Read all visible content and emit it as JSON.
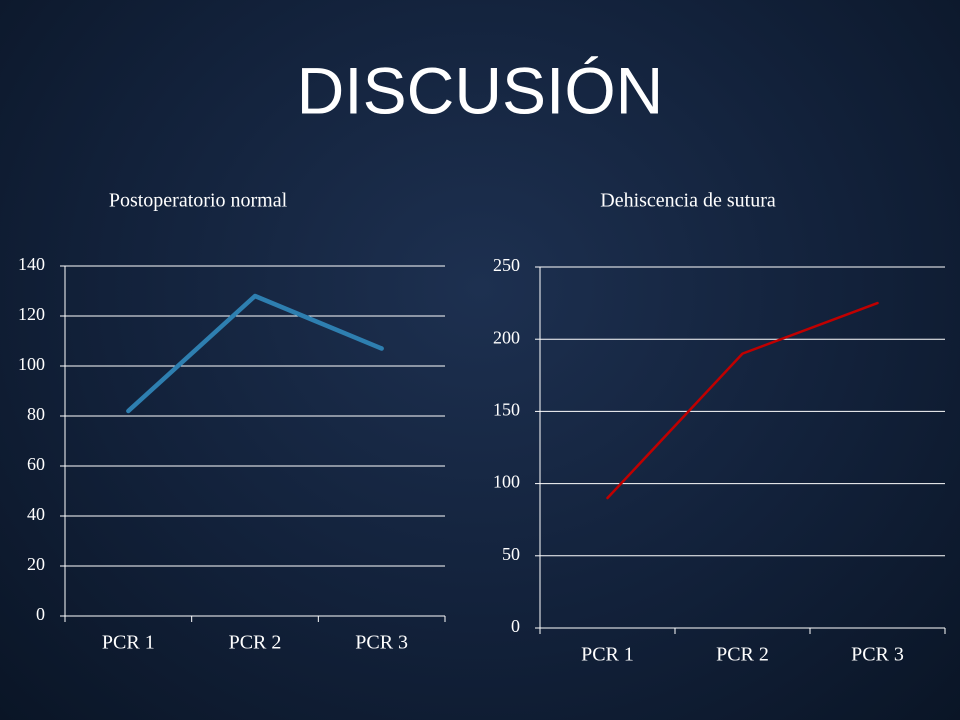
{
  "title": "DISCUSIÓN",
  "chart_data": [
    {
      "type": "line",
      "title": "Postoperatorio normal",
      "categories": [
        "PCR 1",
        "PCR 2",
        "PCR 3"
      ],
      "values": [
        82,
        128,
        107
      ],
      "color": "#2e7fb0",
      "ylim": [
        0,
        140
      ],
      "yticks": [
        0,
        20,
        40,
        60,
        80,
        100,
        120,
        140
      ],
      "grid": true
    },
    {
      "type": "line",
      "title": "Dehiscencia de sutura",
      "categories": [
        "PCR 1",
        "PCR 2",
        "PCR 3"
      ],
      "values": [
        90,
        190,
        225
      ],
      "color": "#c00000",
      "ylim": [
        0,
        250
      ],
      "yticks": [
        0,
        50,
        100,
        150,
        200,
        250
      ],
      "grid": true
    }
  ]
}
